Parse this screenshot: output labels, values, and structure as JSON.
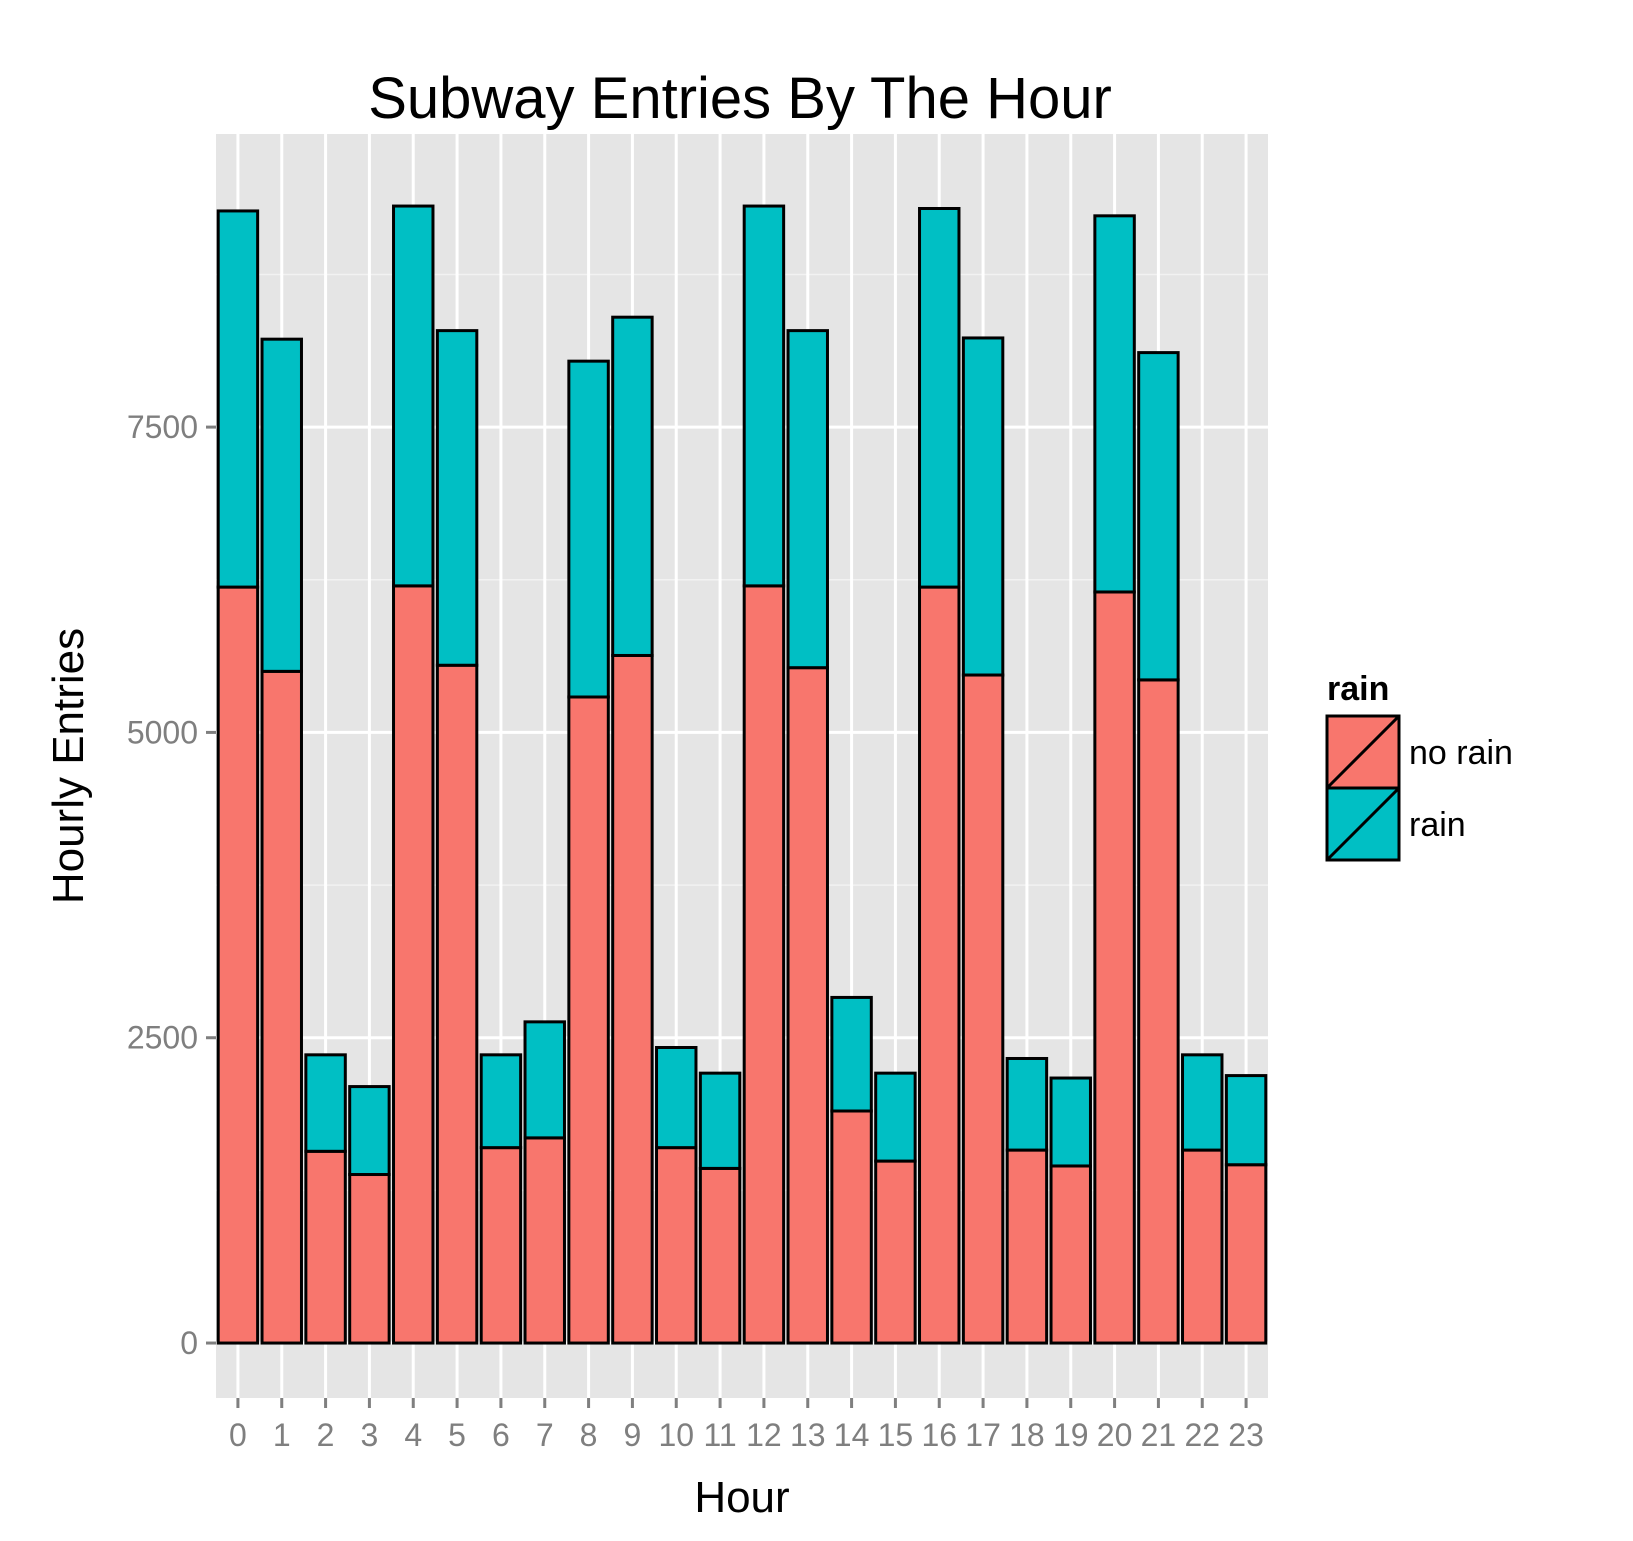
{
  "chart_data": {
    "type": "bar",
    "stacked": true,
    "title": "Subway Entries By The Hour",
    "xlabel": "Hour",
    "ylabel": "Hourly Entries",
    "categories": [
      "0",
      "1",
      "2",
      "3",
      "4",
      "5",
      "6",
      "7",
      "8",
      "9",
      "10",
      "11",
      "12",
      "13",
      "14",
      "15",
      "16",
      "17",
      "18",
      "19",
      "20",
      "21",
      "22",
      "23"
    ],
    "y_ticks": [
      0,
      2500,
      5000,
      7500
    ],
    "y_tick_labels": [
      "0",
      "2500",
      "5000",
      "7500"
    ],
    "ylim": [
      -450,
      9900
    ],
    "grid": true,
    "legend_position": "right",
    "legend_title": "rain",
    "series": [
      {
        "name": "no rain",
        "color": "#F8766D",
        "values": [
          6190,
          5500,
          1570,
          1380,
          6200,
          5550,
          1600,
          1680,
          5290,
          5630,
          1600,
          1430,
          6200,
          5530,
          1900,
          1490,
          6190,
          5470,
          1580,
          1450,
          6150,
          5430,
          1580,
          1460
        ]
      },
      {
        "name": "rain",
        "color": "#00BFC4",
        "values": [
          3080,
          2720,
          790,
          720,
          3110,
          2740,
          760,
          950,
          2750,
          2770,
          820,
          780,
          3110,
          2760,
          930,
          720,
          3100,
          2760,
          750,
          720,
          3080,
          2680,
          780,
          730
        ]
      }
    ]
  }
}
